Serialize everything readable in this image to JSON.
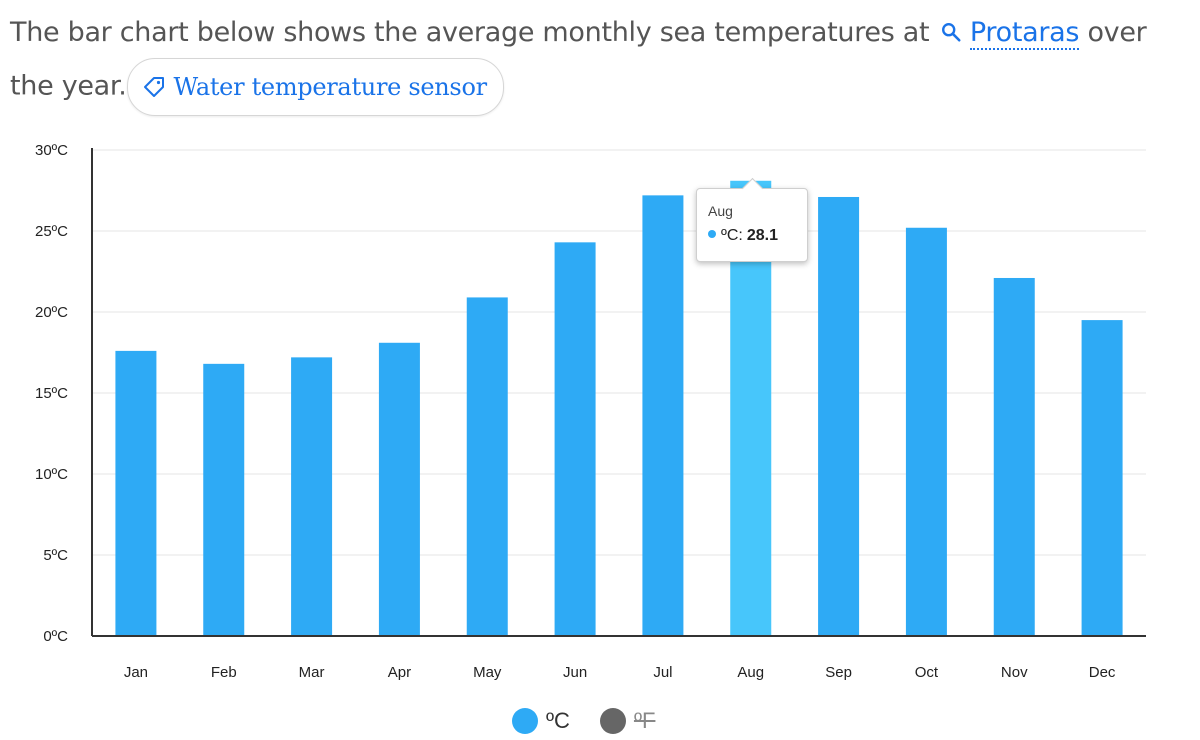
{
  "intro": {
    "text_before": "The bar chart below shows the average monthly sea temperatures at ",
    "link_text": "Protaras",
    "text_after": " over the year.",
    "chip_label": "Water temperature sensor"
  },
  "colors": {
    "bar": "#2eaaf5",
    "bar_highlight": "#47c6fb",
    "axis": "#333333",
    "grid": "#e6e6e6",
    "link": "#1a73e8",
    "legend_inactive": "#666666"
  },
  "chart_data": {
    "type": "bar",
    "categories": [
      "Jan",
      "Feb",
      "Mar",
      "Apr",
      "May",
      "Jun",
      "Jul",
      "Aug",
      "Sep",
      "Oct",
      "Nov",
      "Dec"
    ],
    "series": [
      {
        "name": "ºC",
        "values": [
          17.6,
          16.8,
          17.2,
          18.1,
          20.9,
          24.3,
          27.2,
          28.1,
          27.1,
          25.2,
          22.1,
          19.5
        ]
      }
    ],
    "y_ticks": [
      "0ºC",
      "5ºC",
      "10ºC",
      "15ºC",
      "20ºC",
      "25ºC",
      "30ºC"
    ],
    "ylim": [
      0,
      30
    ],
    "grid": true,
    "highlighted_category": "Aug",
    "legend_position": "bottom",
    "tooltip": {
      "category": "Aug",
      "series_label": "ºC:",
      "value": "28.1"
    }
  },
  "legend": [
    {
      "label": "ºC",
      "active": true
    },
    {
      "label": "ºF",
      "active": false
    }
  ]
}
